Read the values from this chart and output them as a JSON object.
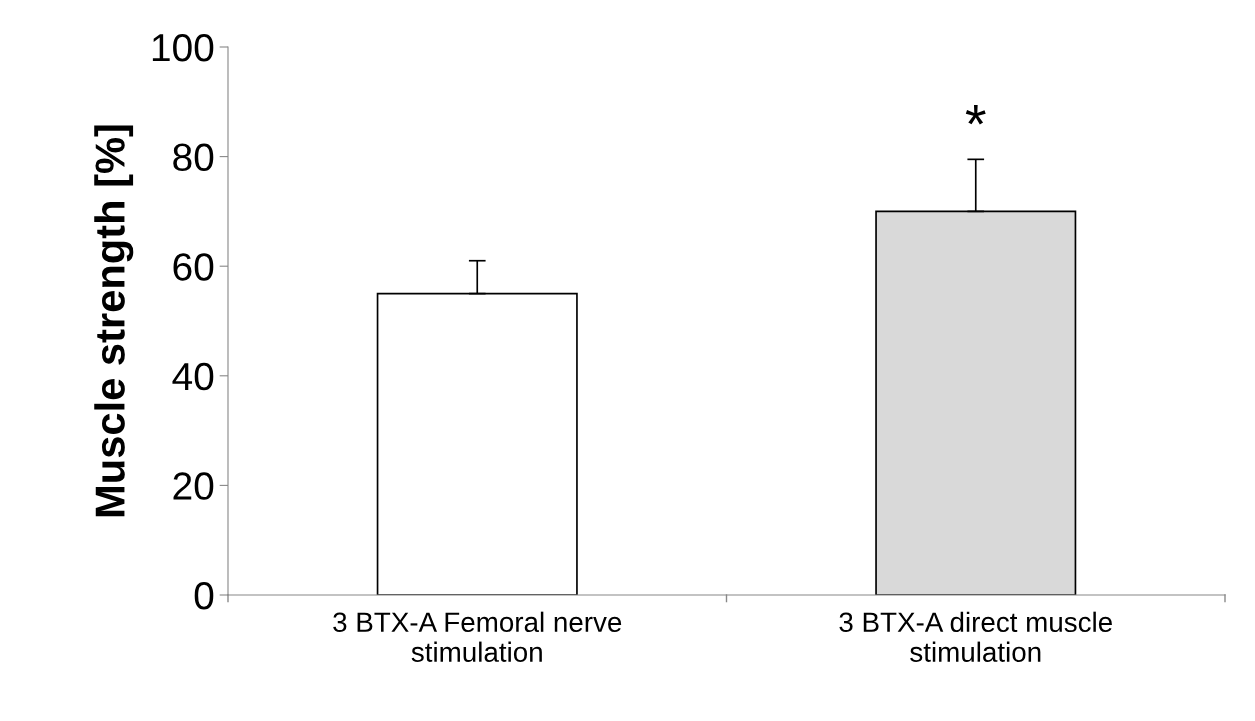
{
  "chart_data": {
    "type": "bar",
    "ylabel": "Muscle strength [%]",
    "categories": [
      "3 BTX-A Femoral nerve\nstimulation",
      "3 BTX-A direct muscle\nstimulation"
    ],
    "values": [
      55,
      70
    ],
    "colors": [
      "#ffffff",
      "#d9d9d9"
    ],
    "errors": [
      [
        55,
        61
      ],
      [
        70,
        79.5
      ]
    ],
    "ylim": [
      0,
      100
    ],
    "yticks": [
      0,
      20,
      40,
      60,
      80,
      100
    ],
    "grid": false,
    "annotations": [
      "*"
    ]
  }
}
